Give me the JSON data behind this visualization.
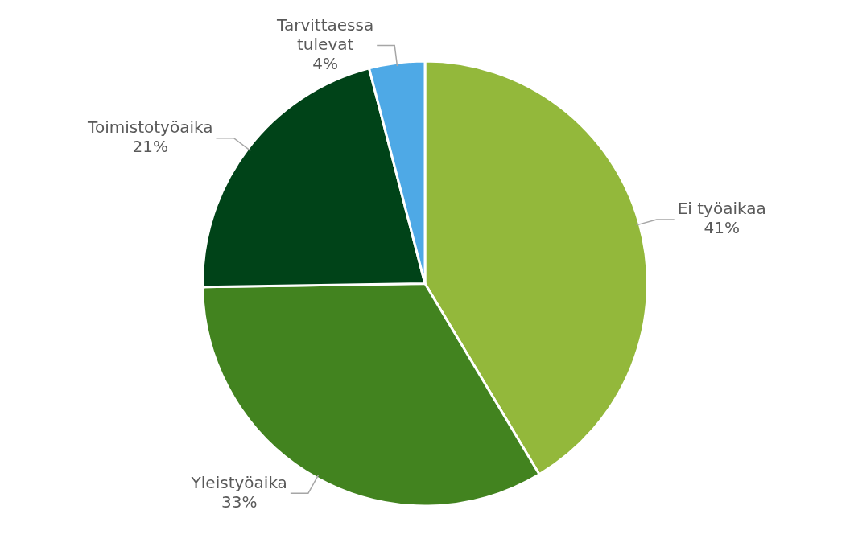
{
  "chart_data": {
    "type": "pie",
    "categories": [
      "Ei työaikaa",
      "Yleistyöaika",
      "Toimistotyöaika",
      "Tarvittaessa tulevat"
    ],
    "values": [
      41,
      33,
      21,
      4
    ],
    "colors": [
      "#93b83b",
      "#42831f",
      "#004318",
      "#4ea9e6"
    ],
    "value_labels": [
      "41%",
      "33%",
      "21%",
      "4%"
    ],
    "legend": false
  }
}
